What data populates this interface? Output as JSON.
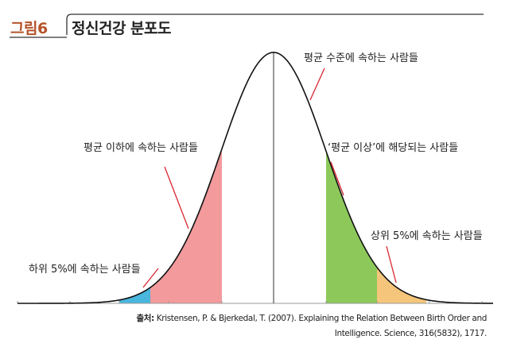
{
  "figure": {
    "label": "그림6",
    "title": "정신건강 분포도"
  },
  "annotations": {
    "average_level": "평균 수준에 속하는 사람들",
    "below_average": "평균 이하에 속하는 사람들",
    "above_average": "‘평균 이상’에 해당되는 사람들",
    "top_5": "상위 5%에 속하는 사람들",
    "bottom_5": "하위 5%에 속하는 사람들"
  },
  "source": {
    "label": "출처:",
    "line1": "Kristensen, P. & Bjerkedal, T. (2007). Explaining the Relation Between Birth Order and",
    "line2": "Intelligence. Science, 316(5832), 1717."
  },
  "colors": {
    "curve": "#111111",
    "bottom_5": "#49b6de",
    "below_average": "#f29a9c",
    "above_average": "#8cc95a",
    "top_5": "#f4c57a",
    "pointer": "#d8262f",
    "accent": "#b5532a"
  }
}
